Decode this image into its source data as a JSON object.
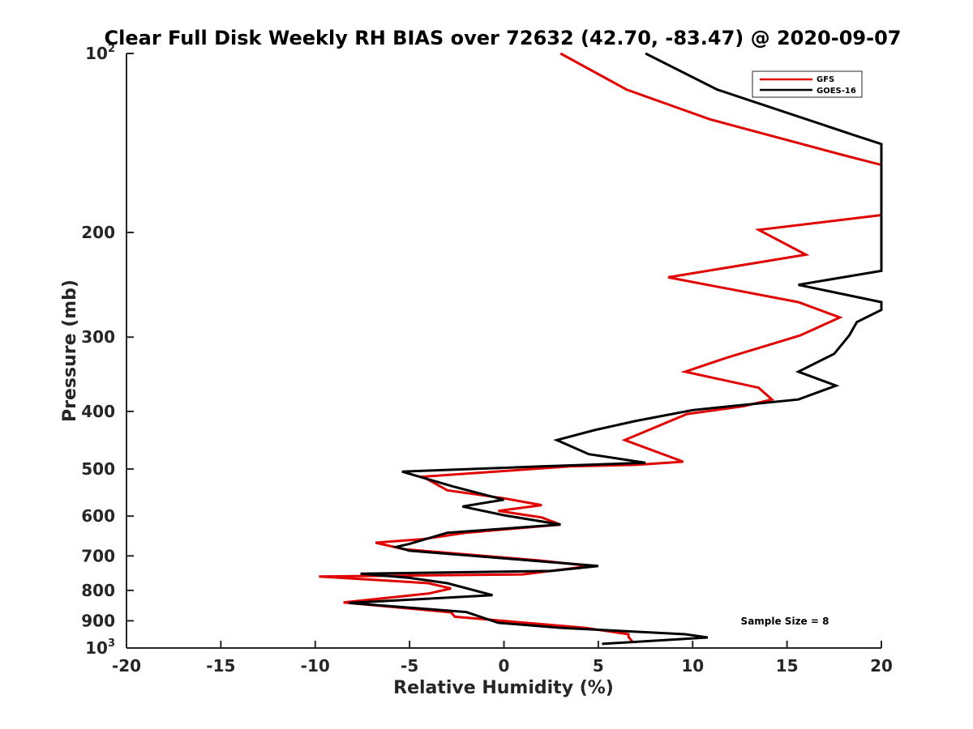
{
  "chart_data": {
    "type": "line",
    "title": "Clear Full Disk Weekly RH BIAS over 72632 (42.70, -83.47) @ 2020-09-07",
    "xlabel": "Relative Humidity (%)",
    "ylabel": "Pressure (mb)",
    "xlim": [
      -20,
      20
    ],
    "ylim": [
      100,
      1000
    ],
    "y_scale": "log",
    "y_reversed": true,
    "grid": false,
    "legend_position": "top-right",
    "x_ticks": [
      "-20",
      "-15",
      "-10",
      "-5",
      "0",
      "5",
      "10",
      "15",
      "20"
    ],
    "y_ticks": [
      {
        "value": 100,
        "base": "10",
        "exp": "2"
      },
      {
        "value": 200,
        "label": "200"
      },
      {
        "value": 300,
        "label": "300"
      },
      {
        "value": 400,
        "label": "400"
      },
      {
        "value": 500,
        "label": "500"
      },
      {
        "value": 600,
        "label": "600"
      },
      {
        "value": 700,
        "label": "700"
      },
      {
        "value": 800,
        "label": "800"
      },
      {
        "value": 900,
        "label": "900"
      },
      {
        "value": 1000,
        "base": "10",
        "exp": "3"
      }
    ],
    "annotation": "Sample Size = 8",
    "series": [
      {
        "name": "GFS",
        "color": "#e00000",
        "points": [
          [
            3.0,
            100
          ],
          [
            6.5,
            115
          ],
          [
            10.9,
            129
          ],
          [
            17.9,
            148
          ],
          [
            20.0,
            154
          ],
          [
            20.0,
            187
          ],
          [
            13.5,
            198
          ],
          [
            16.0,
            218
          ],
          [
            8.7,
            238
          ],
          [
            15.6,
            262
          ],
          [
            17.8,
            278
          ],
          [
            15.7,
            298
          ],
          [
            11.8,
            325
          ],
          [
            9.6,
            343
          ],
          [
            13.5,
            365
          ],
          [
            14.2,
            382
          ],
          [
            12.7,
            392
          ],
          [
            9.7,
            404
          ],
          [
            6.4,
            447
          ],
          [
            9.5,
            486
          ],
          [
            7.0,
            492
          ],
          [
            3.5,
            495
          ],
          [
            -4.3,
            515
          ],
          [
            -3.0,
            543
          ],
          [
            0.0,
            560
          ],
          [
            2.0,
            575
          ],
          [
            -0.3,
            588
          ],
          [
            2.0,
            603
          ],
          [
            3.0,
            620
          ],
          [
            -2.0,
            640
          ],
          [
            -4.3,
            656
          ],
          [
            -6.8,
            665
          ],
          [
            -5.3,
            682
          ],
          [
            2.0,
            713
          ],
          [
            4.6,
            728
          ],
          [
            1.0,
            752
          ],
          [
            -9.8,
            758
          ],
          [
            -4.0,
            778
          ],
          [
            -2.8,
            794
          ],
          [
            -4.0,
            810
          ],
          [
            -8.5,
            838
          ],
          [
            -2.8,
            871
          ],
          [
            -2.6,
            886
          ],
          [
            4.3,
            925
          ],
          [
            6.6,
            948
          ],
          [
            6.6,
            958
          ],
          [
            6.8,
            975
          ]
        ]
      },
      {
        "name": "GOES-16",
        "color": "#000000",
        "points": [
          [
            7.5,
            100
          ],
          [
            11.3,
            115
          ],
          [
            18.5,
            137
          ],
          [
            20.0,
            142
          ],
          [
            20.0,
            232
          ],
          [
            15.6,
            245
          ],
          [
            20.0,
            262
          ],
          [
            20.0,
            270
          ],
          [
            18.7,
            283
          ],
          [
            18.3,
            298
          ],
          [
            17.5,
            320
          ],
          [
            15.6,
            343
          ],
          [
            17.6,
            362
          ],
          [
            15.6,
            382
          ],
          [
            12.0,
            392
          ],
          [
            10.0,
            398
          ],
          [
            7.0,
            415
          ],
          [
            4.8,
            430
          ],
          [
            2.8,
            447
          ],
          [
            4.5,
            472
          ],
          [
            7.5,
            488
          ],
          [
            2.0,
            495
          ],
          [
            -5.4,
            505
          ],
          [
            -2.7,
            535
          ],
          [
            0.0,
            563
          ],
          [
            -2.2,
            578
          ],
          [
            0.0,
            598
          ],
          [
            3.0,
            620
          ],
          [
            -3.0,
            640
          ],
          [
            -5.0,
            668
          ],
          [
            -5.7,
            676
          ],
          [
            -5.0,
            686
          ],
          [
            2.0,
            715
          ],
          [
            5.0,
            728
          ],
          [
            2.5,
            742
          ],
          [
            -7.6,
            750
          ],
          [
            -5.0,
            762
          ],
          [
            -3.0,
            778
          ],
          [
            -0.6,
            815
          ],
          [
            -8.2,
            840
          ],
          [
            -2.0,
            870
          ],
          [
            -0.3,
            907
          ],
          [
            3.0,
            925
          ],
          [
            9.6,
            948
          ],
          [
            10.8,
            960
          ],
          [
            5.2,
            984
          ]
        ]
      }
    ]
  }
}
